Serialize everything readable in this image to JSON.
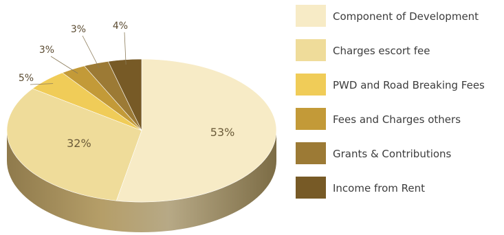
{
  "chart_data": {
    "type": "pie",
    "style": "3d-exploded-labels",
    "legend_position": "right",
    "slices": [
      {
        "label": "Component of Development",
        "value": 53,
        "display": "53%",
        "color": "#f7ebc6"
      },
      {
        "label": "Charges escort fee",
        "value": 32,
        "display": "32%",
        "color": "#efdc9a"
      },
      {
        "label": "PWD and Road Breaking Fees",
        "value": 5,
        "display": "5%",
        "color": "#f0cc58"
      },
      {
        "label": "Fees and Charges others",
        "value": 3,
        "display": "3%",
        "color": "#c39a38"
      },
      {
        "label": "Grants & Contributions",
        "value": 3,
        "display": "3%",
        "color": "#9c7a35"
      },
      {
        "label": "Income from Rent",
        "value": 4,
        "display": "4%",
        "color": "#775a26"
      }
    ]
  }
}
